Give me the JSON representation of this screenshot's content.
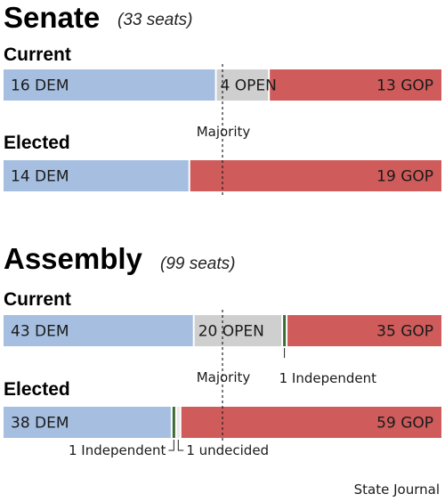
{
  "source": "State Journal",
  "colors": {
    "DEM": "#a6bfe0",
    "OPEN": "#cfcfcf",
    "GOP": "#cf5b5b",
    "Independent": "#3e6b34",
    "undecided": "#e7e7e7"
  },
  "chart_data": [
    {
      "type": "bar",
      "stacked": true,
      "orientation": "horizontal",
      "title": "Senate",
      "subtitle": "(33 seats)",
      "total": 33,
      "majority_label": "Majority",
      "categories": [
        "Current",
        "Elected"
      ],
      "rows": [
        {
          "label": "Current",
          "segments": [
            {
              "party": "DEM",
              "value": 16,
              "text": "16 DEM"
            },
            {
              "party": "OPEN",
              "value": 4,
              "text": "4 OPEN"
            },
            {
              "party": "GOP",
              "value": 13,
              "text": "13 GOP"
            }
          ]
        },
        {
          "label": "Elected",
          "segments": [
            {
              "party": "DEM",
              "value": 14,
              "text": "14 DEM"
            },
            {
              "party": "GOP",
              "value": 19,
              "text": "19 GOP"
            }
          ]
        }
      ]
    },
    {
      "type": "bar",
      "stacked": true,
      "orientation": "horizontal",
      "title": "Assembly",
      "subtitle": "(99 seats)",
      "total": 99,
      "majority_label": "Majority",
      "categories": [
        "Current",
        "Elected"
      ],
      "rows": [
        {
          "label": "Current",
          "segments": [
            {
              "party": "DEM",
              "value": 43,
              "text": "43 DEM"
            },
            {
              "party": "OPEN",
              "value": 20,
              "text": "20 OPEN"
            },
            {
              "party": "Independent",
              "value": 1,
              "text": "1 Independent"
            },
            {
              "party": "GOP",
              "value": 35,
              "text": "35 GOP"
            }
          ]
        },
        {
          "label": "Elected",
          "segments": [
            {
              "party": "DEM",
              "value": 38,
              "text": "38 DEM"
            },
            {
              "party": "Independent",
              "value": 1,
              "text": "1 Independent"
            },
            {
              "party": "undecided",
              "value": 1,
              "text": "1 undecided"
            },
            {
              "party": "GOP",
              "value": 59,
              "text": "59 GOP"
            }
          ]
        }
      ]
    }
  ]
}
